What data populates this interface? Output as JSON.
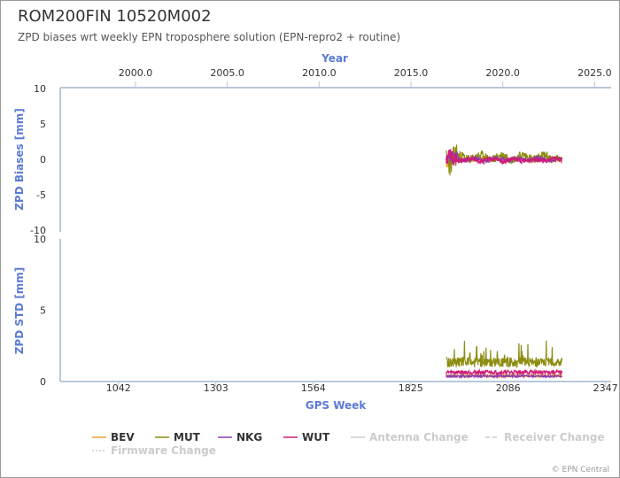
{
  "title": "ROM200FIN 10520M002",
  "subtitle": "ZPD biases wrt weekly EPN troposphere solution (EPN-repro2 + routine)",
  "credit": "© EPN Central",
  "colors": {
    "axis_title": "#5b7bd5",
    "axis_line": "#b8c8d8",
    "BEV": "#f0a030",
    "MUT": "#8c8c10",
    "NKG": "#8a3cb4",
    "WUT": "#d01c78",
    "disabled": "#cccccc"
  },
  "chart_data": [
    {
      "type": "line",
      "panel": "bias",
      "ylabel": "ZPD Biases [mm]",
      "ylim": [
        -10,
        10
      ],
      "yticks": [
        "10",
        "5",
        "0",
        "-5",
        "-10"
      ],
      "top_axis": {
        "label": "Year",
        "ticks": [
          "2000.0",
          "2005.0",
          "2010.0",
          "2015.0",
          "2020.0",
          "2025.0"
        ],
        "range": [
          1995.9,
          2025.9
        ]
      },
      "x_range_gps_week": [
        1920,
        2230
      ],
      "series": [
        {
          "name": "BEV",
          "color": "#f0a030",
          "amplitude": 0.3,
          "offset": 0.0,
          "seed": 11
        },
        {
          "name": "MUT",
          "color": "#8c8c10",
          "amplitude": 0.6,
          "offset": 0.3,
          "seed": 23
        },
        {
          "name": "NKG",
          "color": "#8a3cb4",
          "amplitude": 0.3,
          "offset": 0.0,
          "seed": 37
        },
        {
          "name": "WUT",
          "color": "#d01c78",
          "amplitude": 0.35,
          "offset": -0.1,
          "seed": 51
        }
      ]
    },
    {
      "type": "line",
      "panel": "std",
      "ylabel": "ZPD STD [mm]",
      "xlabel": "GPS Week",
      "ylim": [
        0,
        10
      ],
      "yticks": [
        "10",
        "5",
        "0"
      ],
      "xticks": [
        "1042",
        "1303",
        "1564",
        "1825",
        "2086",
        "2347"
      ],
      "x_range": [
        886,
        2362
      ],
      "x_range_gps_week": [
        1920,
        2230
      ],
      "series": [
        {
          "name": "BEV",
          "color": "#f0a030",
          "base": 0.3,
          "amplitude": 0.2,
          "seed": 13
        },
        {
          "name": "MUT",
          "color": "#8c8c10",
          "base": 1.0,
          "amplitude": 0.7,
          "seed": 29
        },
        {
          "name": "NKG",
          "color": "#8a3cb4",
          "base": 0.3,
          "amplitude": 0.15,
          "seed": 41
        },
        {
          "name": "WUT",
          "color": "#d01c78",
          "base": 0.5,
          "amplitude": 0.3,
          "seed": 59
        }
      ]
    }
  ],
  "legend": [
    {
      "label": "BEV",
      "color": "#f0a030",
      "style": "solid",
      "enabled": true
    },
    {
      "label": "MUT",
      "color": "#8c8c10",
      "style": "solid",
      "enabled": true
    },
    {
      "label": "NKG",
      "color": "#8a3cb4",
      "style": "solid",
      "enabled": true
    },
    {
      "label": "WUT",
      "color": "#d01c78",
      "style": "solid",
      "enabled": true
    },
    {
      "label": "Antenna Change",
      "color": "#cccccc",
      "style": "solid",
      "enabled": false
    },
    {
      "label": "Receiver Change",
      "color": "#cccccc",
      "style": "dashed",
      "enabled": false
    },
    {
      "label": "Firmware Change",
      "color": "#cccccc",
      "style": "dotted",
      "enabled": false
    }
  ]
}
